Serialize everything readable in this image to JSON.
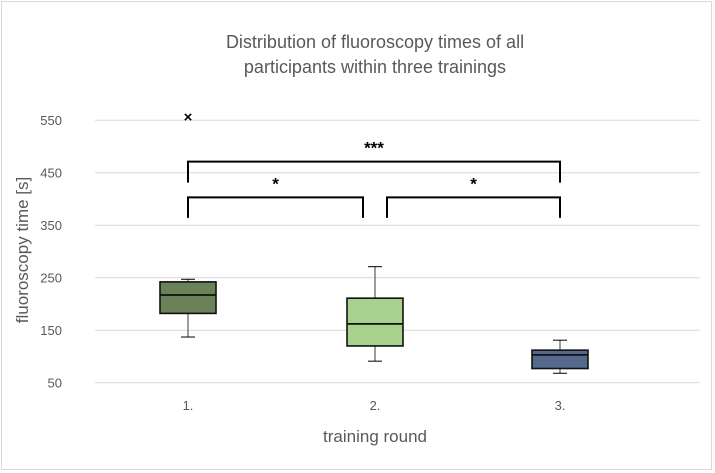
{
  "chart_data": {
    "type": "boxplot",
    "title": [
      "Distribution of fluoroscopy times of all",
      "participants within three trainings"
    ],
    "xlabel": "training round",
    "ylabel": "fluoroscopy time [s]",
    "ylim": [
      50,
      570
    ],
    "yticks": [
      550,
      450,
      350,
      250,
      150,
      50
    ],
    "grid": true,
    "categories": [
      "1.",
      "2.",
      "3."
    ],
    "boxes": [
      {
        "category": "1.",
        "min": 137,
        "q1": 182,
        "median": 217,
        "q3": 242,
        "max": 247,
        "outliers": [
          556
        ],
        "color": "#6b8157"
      },
      {
        "category": "2.",
        "min": 91,
        "q1": 120,
        "median": 162,
        "q3": 211,
        "max": 271,
        "outliers": [],
        "color": "#a9d18e"
      },
      {
        "category": "3.",
        "min": 68,
        "q1": 77,
        "median": 103,
        "q3": 112,
        "max": 131,
        "outliers": [],
        "color": "#54698c"
      }
    ],
    "annotations": [
      {
        "from": "1.",
        "to": "3.",
        "label": "***",
        "level": 471,
        "leg_end": 431
      },
      {
        "from": "1.",
        "to": "2.",
        "label": "*",
        "level": 403,
        "leg_end": 364
      },
      {
        "from": "2.",
        "to": "3.",
        "label": "*",
        "level": 403,
        "leg_end": 364
      }
    ]
  }
}
